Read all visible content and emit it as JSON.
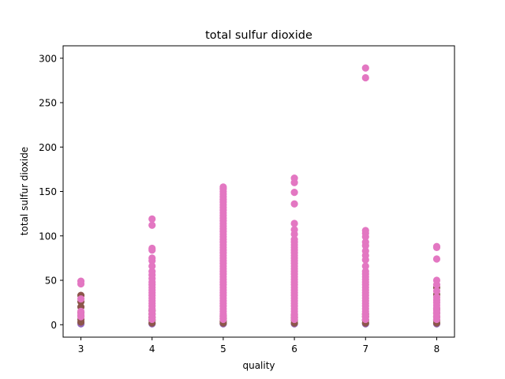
{
  "chart_data": {
    "type": "scatter",
    "title": "total sulfur dioxide",
    "xlabel": "quality",
    "ylabel": "total sulfur dioxide",
    "xlim": [
      2.75,
      8.25
    ],
    "ylim": [
      -14,
      314
    ],
    "xticks": [
      3,
      4,
      5,
      6,
      7,
      8
    ],
    "yticks": [
      0,
      50,
      100,
      150,
      200,
      250,
      300
    ],
    "grid": false,
    "legend": "none",
    "colors": [
      "#1f77b4",
      "#ff7f0e",
      "#2ca02c",
      "#d62728",
      "#9467bd",
      "#8c564b",
      "#e377c2"
    ],
    "series": [
      {
        "color": "#9467bd",
        "points": [
          [
            3,
            1
          ],
          [
            4,
            1
          ],
          [
            5,
            1
          ],
          [
            6,
            1
          ],
          [
            7,
            1
          ],
          [
            8,
            1
          ]
        ]
      },
      {
        "color": "#8c564b",
        "points": [
          [
            3,
            3
          ],
          [
            3,
            6
          ],
          [
            3,
            10
          ],
          [
            3,
            14
          ],
          [
            3,
            20
          ],
          [
            3,
            26
          ],
          [
            3,
            33
          ],
          [
            4,
            2
          ],
          [
            4,
            5
          ],
          [
            4,
            8
          ],
          [
            4,
            12
          ],
          [
            4,
            16
          ],
          [
            5,
            2
          ],
          [
            5,
            4
          ],
          [
            5,
            7
          ],
          [
            5,
            10
          ],
          [
            6,
            2
          ],
          [
            6,
            5
          ],
          [
            6,
            8
          ],
          [
            6,
            11
          ],
          [
            7,
            2
          ],
          [
            7,
            5
          ],
          [
            7,
            9
          ],
          [
            7,
            12
          ],
          [
            8,
            2
          ],
          [
            8,
            5
          ],
          [
            8,
            9
          ],
          [
            8,
            13
          ],
          [
            8,
            18
          ],
          [
            8,
            34
          ],
          [
            8,
            42
          ]
        ]
      },
      {
        "color": "#e377c2",
        "points": [
          [
            3,
            9
          ],
          [
            3,
            12
          ],
          [
            3,
            15
          ],
          [
            3,
            29
          ],
          [
            3,
            46
          ],
          [
            3,
            49
          ],
          [
            4,
            6
          ],
          [
            4,
            9
          ],
          [
            4,
            12
          ],
          [
            4,
            15
          ],
          [
            4,
            18
          ],
          [
            4,
            21
          ],
          [
            4,
            24
          ],
          [
            4,
            27
          ],
          [
            4,
            30
          ],
          [
            4,
            33
          ],
          [
            4,
            36
          ],
          [
            4,
            39
          ],
          [
            4,
            42
          ],
          [
            4,
            45
          ],
          [
            4,
            48
          ],
          [
            4,
            52
          ],
          [
            4,
            56
          ],
          [
            4,
            60
          ],
          [
            4,
            66
          ],
          [
            4,
            72
          ],
          [
            4,
            75
          ],
          [
            4,
            84
          ],
          [
            4,
            86
          ],
          [
            4,
            112
          ],
          [
            4,
            119
          ],
          [
            5,
            6
          ],
          [
            5,
            9
          ],
          [
            5,
            12
          ],
          [
            5,
            15
          ],
          [
            5,
            18
          ],
          [
            5,
            21
          ],
          [
            5,
            24
          ],
          [
            5,
            27
          ],
          [
            5,
            30
          ],
          [
            5,
            33
          ],
          [
            5,
            36
          ],
          [
            5,
            39
          ],
          [
            5,
            42
          ],
          [
            5,
            45
          ],
          [
            5,
            48
          ],
          [
            5,
            51
          ],
          [
            5,
            54
          ],
          [
            5,
            57
          ],
          [
            5,
            60
          ],
          [
            5,
            63
          ],
          [
            5,
            66
          ],
          [
            5,
            69
          ],
          [
            5,
            72
          ],
          [
            5,
            75
          ],
          [
            5,
            78
          ],
          [
            5,
            81
          ],
          [
            5,
            84
          ],
          [
            5,
            87
          ],
          [
            5,
            90
          ],
          [
            5,
            93
          ],
          [
            5,
            96
          ],
          [
            5,
            99
          ],
          [
            5,
            102
          ],
          [
            5,
            105
          ],
          [
            5,
            108
          ],
          [
            5,
            111
          ],
          [
            5,
            114
          ],
          [
            5,
            117
          ],
          [
            5,
            120
          ],
          [
            5,
            123
          ],
          [
            5,
            126
          ],
          [
            5,
            129
          ],
          [
            5,
            132
          ],
          [
            5,
            135
          ],
          [
            5,
            138
          ],
          [
            5,
            141
          ],
          [
            5,
            144
          ],
          [
            5,
            147
          ],
          [
            5,
            150
          ],
          [
            5,
            153
          ],
          [
            5,
            155
          ],
          [
            6,
            6
          ],
          [
            6,
            9
          ],
          [
            6,
            12
          ],
          [
            6,
            15
          ],
          [
            6,
            18
          ],
          [
            6,
            21
          ],
          [
            6,
            24
          ],
          [
            6,
            27
          ],
          [
            6,
            30
          ],
          [
            6,
            33
          ],
          [
            6,
            36
          ],
          [
            6,
            39
          ],
          [
            6,
            42
          ],
          [
            6,
            45
          ],
          [
            6,
            48
          ],
          [
            6,
            51
          ],
          [
            6,
            54
          ],
          [
            6,
            57
          ],
          [
            6,
            60
          ],
          [
            6,
            63
          ],
          [
            6,
            66
          ],
          [
            6,
            69
          ],
          [
            6,
            72
          ],
          [
            6,
            75
          ],
          [
            6,
            78
          ],
          [
            6,
            81
          ],
          [
            6,
            84
          ],
          [
            6,
            87
          ],
          [
            6,
            90
          ],
          [
            6,
            93
          ],
          [
            6,
            96
          ],
          [
            6,
            102
          ],
          [
            6,
            107
          ],
          [
            6,
            114
          ],
          [
            6,
            136
          ],
          [
            6,
            149
          ],
          [
            6,
            160
          ],
          [
            6,
            165
          ],
          [
            7,
            6
          ],
          [
            7,
            9
          ],
          [
            7,
            12
          ],
          [
            7,
            15
          ],
          [
            7,
            18
          ],
          [
            7,
            21
          ],
          [
            7,
            24
          ],
          [
            7,
            27
          ],
          [
            7,
            30
          ],
          [
            7,
            33
          ],
          [
            7,
            36
          ],
          [
            7,
            39
          ],
          [
            7,
            42
          ],
          [
            7,
            45
          ],
          [
            7,
            48
          ],
          [
            7,
            51
          ],
          [
            7,
            54
          ],
          [
            7,
            57
          ],
          [
            7,
            60
          ],
          [
            7,
            66
          ],
          [
            7,
            73
          ],
          [
            7,
            78
          ],
          [
            7,
            83
          ],
          [
            7,
            89
          ],
          [
            7,
            93
          ],
          [
            7,
            99
          ],
          [
            7,
            103
          ],
          [
            7,
            106
          ],
          [
            7,
            278
          ],
          [
            7,
            289
          ],
          [
            8,
            6
          ],
          [
            8,
            9
          ],
          [
            8,
            13
          ],
          [
            8,
            16
          ],
          [
            8,
            19
          ],
          [
            8,
            22
          ],
          [
            8,
            25
          ],
          [
            8,
            28
          ],
          [
            8,
            31
          ],
          [
            8,
            38
          ],
          [
            8,
            45
          ],
          [
            8,
            50
          ],
          [
            8,
            74
          ],
          [
            8,
            87
          ],
          [
            8,
            88
          ]
        ]
      }
    ]
  }
}
